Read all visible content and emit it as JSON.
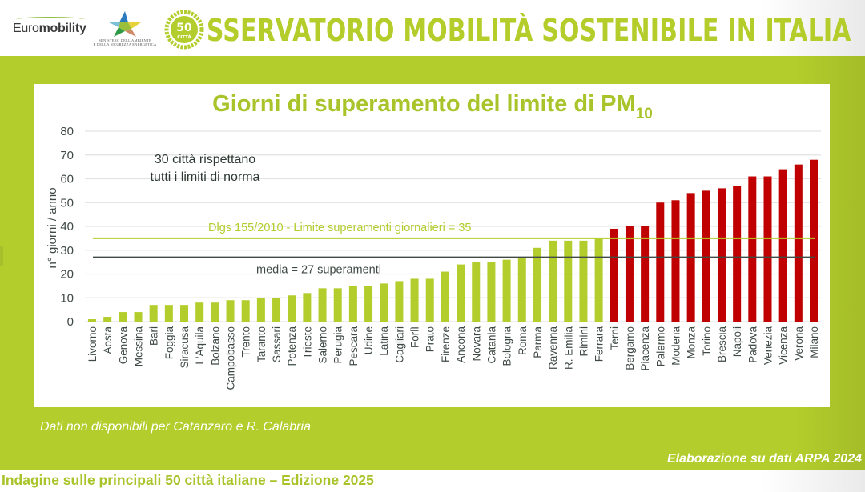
{
  "header": {
    "euromobility_logo": {
      "prefix": "Euro",
      "bold": "mobility"
    },
    "ministry_caption_line1": "MINISTERO DELL'AMBIENTE",
    "ministry_caption_line2": "E DELLA SICUREZZA ENERGETICA",
    "badge_number": "50",
    "badge_label": "CITTÀ",
    "title": "SSERVATORIO MOBILITÀ SOSTENIBILE IN ITALIA"
  },
  "colors": {
    "brand_green": "#b3cd2c",
    "title_green": "#a8c42a",
    "bar_ok": "#b3cd2c",
    "bar_over": "#c00000",
    "limit_line": "#b3cd2c",
    "mean_line": "#3f4a44",
    "text_dark": "#3f4a44"
  },
  "chart_data": {
    "type": "bar",
    "title": "Giorni di superamento del limite di PM",
    "title_subscript": "10",
    "xlabel": "",
    "ylabel": "n° giorni / anno",
    "ylim": [
      0,
      80
    ],
    "yticks": [
      0,
      10,
      20,
      30,
      40,
      50,
      60,
      70,
      80
    ],
    "grid": true,
    "legend": "none",
    "categories": [
      "Livorno",
      "Aosta",
      "Genova",
      "Messina",
      "Bari",
      "Foggia",
      "Siracusa",
      "L'Aquila",
      "Bolzano",
      "Campobasso",
      "Trento",
      "Taranto",
      "Sassari",
      "Potenza",
      "Trieste",
      "Salerno",
      "Perugia",
      "Pescara",
      "Udine",
      "Latina",
      "Cagliari",
      "Forlì",
      "Prato",
      "Firenze",
      "Ancona",
      "Novara",
      "Catania",
      "Bologna",
      "Roma",
      "Parma",
      "Ravenna",
      "R. Emilia",
      "Rimini",
      "Ferrara",
      "Terni",
      "Bergamo",
      "Piacenza",
      "Palermo",
      "Modena",
      "Monza",
      "Torino",
      "Brescia",
      "Napoli",
      "Padova",
      "Venezia",
      "Vicenza",
      "Verona",
      "Milano"
    ],
    "values": [
      1,
      2,
      4,
      4,
      7,
      7,
      7,
      8,
      8,
      9,
      9,
      10,
      10,
      11,
      12,
      14,
      14,
      15,
      15,
      16,
      17,
      18,
      18,
      21,
      24,
      25,
      25,
      26,
      27,
      31,
      34,
      34,
      34,
      35,
      39,
      40,
      40,
      50,
      51,
      54,
      55,
      56,
      57,
      61,
      61,
      64,
      66,
      68
    ],
    "threshold": 35,
    "reference_lines": [
      {
        "name": "limit",
        "value": 35,
        "label": "Dlgs 155/2010 - Limite superamenti giornalieri = 35"
      },
      {
        "name": "mean",
        "value": 27,
        "label": "media = 27 superamenti"
      }
    ],
    "annotations": [
      "30 città rispettano",
      "tutti i limiti di norma"
    ]
  },
  "notes": {
    "missing": "Dati non disponibili per Catanzaro e R. Calabria",
    "source": "Elaborazione su dati ARPA 2024"
  },
  "footer": {
    "text": "Indagine sulle principali 50 città italiane – Edizione 2025"
  }
}
